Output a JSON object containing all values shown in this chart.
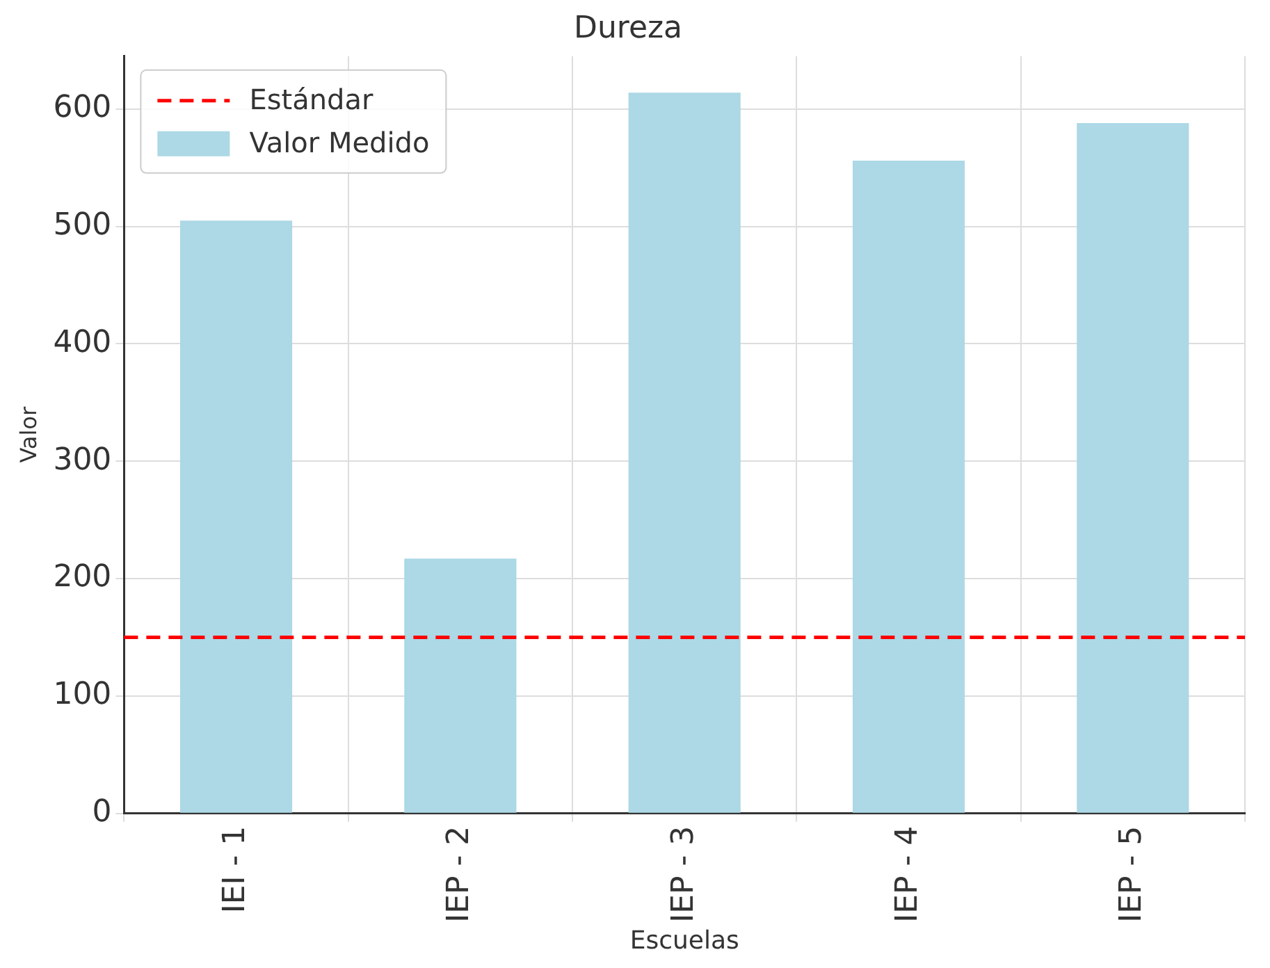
{
  "chart_data": {
    "type": "bar",
    "title": "Dureza",
    "xlabel": "Escuelas",
    "ylabel": "Valor",
    "categories": [
      "IEI - 1",
      "IEP - 2",
      "IEP - 3",
      "IEP - 4",
      "IEP - 5"
    ],
    "series": [
      {
        "name": "Valor Medido",
        "color": "#add8e6",
        "values": [
          505,
          217,
          614,
          556,
          588
        ]
      }
    ],
    "ylim": [
      0,
      645
    ],
    "yticks": [
      0,
      100,
      200,
      300,
      400,
      500,
      600
    ],
    "grid": true,
    "legend": "top left",
    "ref_lines": [
      {
        "axis": "y",
        "value": 150,
        "label": "Estándar",
        "color": "#ff0000",
        "line_style": "dashed"
      }
    ]
  }
}
